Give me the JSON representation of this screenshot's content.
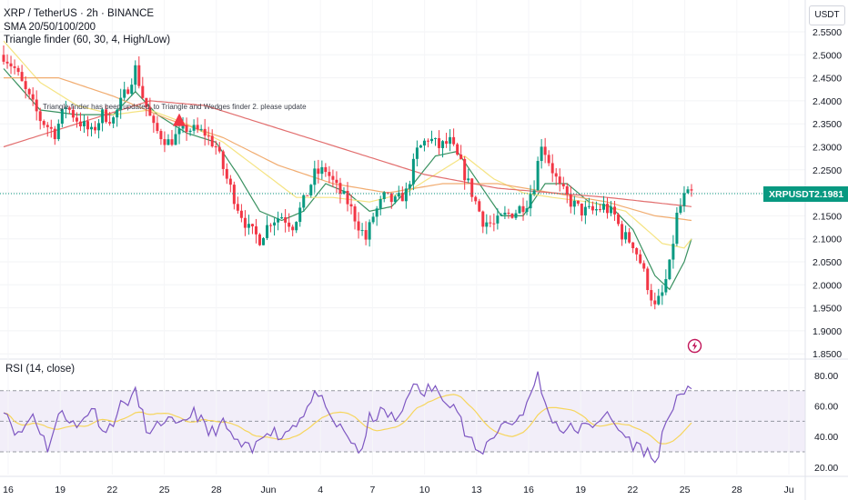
{
  "header": {
    "symbol_line": "XRP / TetherUS · 2h · BINANCE",
    "sma_line": "SMA 20/50/100/200",
    "triangle_line": "Triangle finder (60, 30, 4, High/Low)",
    "notice": "Triangle finder has been updated, to Triangle and Wedges finder 2. please update"
  },
  "price_axis": {
    "unit": "USDT",
    "ticks": [
      "2.5500",
      "2.5000",
      "2.4500",
      "2.4000",
      "2.3500",
      "2.3000",
      "2.2500",
      "2.2000",
      "2.1500",
      "2.1000",
      "2.0500",
      "2.0000",
      "1.9500",
      "1.9000",
      "1.8500"
    ]
  },
  "last_price": {
    "symbol": "XRPUSDT",
    "value": "2.1981",
    "color": "#089981"
  },
  "rsi": {
    "title": "RSI (14, close)",
    "ticks": [
      "80.00",
      "60.00",
      "40.00",
      "20.00"
    ]
  },
  "time_axis": {
    "labels": [
      "16",
      "19",
      "22",
      "25",
      "28",
      "Jun",
      "4",
      "7",
      "10",
      "13",
      "16",
      "19",
      "22",
      "25",
      "28",
      "Ju"
    ]
  },
  "colors": {
    "up": "#089981",
    "down": "#f23645",
    "sma20": "#2e8b57",
    "sma50": "#f4e27a",
    "sma100": "#f0a868",
    "sma200": "#e06666",
    "rsi_line": "#7e57c2",
    "rsi_ma": "#f6d55c",
    "rsi_band": "#ede7f6"
  },
  "chart_data": {
    "type": "candlestick",
    "symbol": "XRP / TetherUS",
    "interval": "2h",
    "exchange": "BINANCE",
    "price_range": [
      1.85,
      2.55
    ],
    "last_price": 2.1981,
    "anchors": [
      [
        0,
        2.5
      ],
      [
        3,
        2.47
      ],
      [
        6,
        2.42
      ],
      [
        10,
        2.36
      ],
      [
        14,
        2.33
      ],
      [
        17,
        2.39
      ],
      [
        20,
        2.36
      ],
      [
        24,
        2.33
      ],
      [
        27,
        2.37
      ],
      [
        30,
        2.36
      ],
      [
        34,
        2.43
      ],
      [
        36,
        2.47
      ],
      [
        38,
        2.41
      ],
      [
        41,
        2.34
      ],
      [
        45,
        2.31
      ],
      [
        50,
        2.34
      ],
      [
        55,
        2.33
      ],
      [
        58,
        2.3
      ],
      [
        61,
        2.23
      ],
      [
        64,
        2.17
      ],
      [
        67,
        2.12
      ],
      [
        70,
        2.1
      ],
      [
        73,
        2.14
      ],
      [
        76,
        2.15
      ],
      [
        79,
        2.13
      ],
      [
        82,
        2.18
      ],
      [
        85,
        2.24
      ],
      [
        88,
        2.25
      ],
      [
        91,
        2.21
      ],
      [
        94,
        2.18
      ],
      [
        97,
        2.13
      ],
      [
        99,
        2.1
      ],
      [
        101,
        2.15
      ],
      [
        104,
        2.19
      ],
      [
        107,
        2.18
      ],
      [
        110,
        2.2
      ],
      [
        113,
        2.29
      ],
      [
        116,
        2.32
      ],
      [
        119,
        2.3
      ],
      [
        122,
        2.31
      ],
      [
        125,
        2.26
      ],
      [
        128,
        2.2
      ],
      [
        131,
        2.14
      ],
      [
        134,
        2.13
      ],
      [
        137,
        2.15
      ],
      [
        140,
        2.16
      ],
      [
        143,
        2.18
      ],
      [
        145,
        2.22
      ],
      [
        147,
        2.31
      ],
      [
        149,
        2.27
      ],
      [
        152,
        2.21
      ],
      [
        155,
        2.18
      ],
      [
        158,
        2.16
      ],
      [
        161,
        2.16
      ],
      [
        164,
        2.17
      ],
      [
        167,
        2.15
      ],
      [
        169,
        2.11
      ],
      [
        172,
        2.09
      ],
      [
        174,
        2.05
      ],
      [
        176,
        2.0
      ],
      [
        178,
        1.95
      ],
      [
        180,
        1.98
      ],
      [
        182,
        2.04
      ],
      [
        184,
        2.15
      ],
      [
        186,
        2.19
      ],
      [
        188,
        2.198
      ]
    ],
    "sma": [
      {
        "name": "SMA 20",
        "color": "#2e8b57",
        "anchors": [
          [
            0,
            2.47
          ],
          [
            10,
            2.38
          ],
          [
            20,
            2.37
          ],
          [
            30,
            2.37
          ],
          [
            36,
            2.42
          ],
          [
            42,
            2.37
          ],
          [
            50,
            2.33
          ],
          [
            58,
            2.31
          ],
          [
            64,
            2.24
          ],
          [
            70,
            2.16
          ],
          [
            76,
            2.14
          ],
          [
            82,
            2.16
          ],
          [
            88,
            2.22
          ],
          [
            94,
            2.2
          ],
          [
            100,
            2.16
          ],
          [
            106,
            2.17
          ],
          [
            112,
            2.22
          ],
          [
            118,
            2.28
          ],
          [
            124,
            2.29
          ],
          [
            130,
            2.22
          ],
          [
            136,
            2.15
          ],
          [
            142,
            2.15
          ],
          [
            148,
            2.22
          ],
          [
            154,
            2.22
          ],
          [
            160,
            2.18
          ],
          [
            166,
            2.17
          ],
          [
            172,
            2.12
          ],
          [
            178,
            2.02
          ],
          [
            182,
            1.99
          ],
          [
            186,
            2.05
          ],
          [
            188,
            2.1
          ]
        ]
      },
      {
        "name": "SMA 50",
        "color": "#f4e27a",
        "anchors": [
          [
            0,
            2.53
          ],
          [
            10,
            2.44
          ],
          [
            20,
            2.39
          ],
          [
            30,
            2.37
          ],
          [
            40,
            2.38
          ],
          [
            50,
            2.35
          ],
          [
            60,
            2.31
          ],
          [
            70,
            2.25
          ],
          [
            80,
            2.19
          ],
          [
            90,
            2.19
          ],
          [
            100,
            2.18
          ],
          [
            110,
            2.2
          ],
          [
            120,
            2.25
          ],
          [
            126,
            2.28
          ],
          [
            134,
            2.23
          ],
          [
            142,
            2.2
          ],
          [
            150,
            2.19
          ],
          [
            160,
            2.18
          ],
          [
            170,
            2.16
          ],
          [
            180,
            2.09
          ],
          [
            186,
            2.08
          ],
          [
            188,
            2.1
          ]
        ]
      },
      {
        "name": "SMA 100",
        "color": "#f0a868",
        "anchors": [
          [
            0,
            2.45
          ],
          [
            15,
            2.45
          ],
          [
            30,
            2.41
          ],
          [
            45,
            2.36
          ],
          [
            60,
            2.32
          ],
          [
            75,
            2.26
          ],
          [
            90,
            2.22
          ],
          [
            105,
            2.2
          ],
          [
            120,
            2.22
          ],
          [
            135,
            2.22
          ],
          [
            150,
            2.2
          ],
          [
            165,
            2.18
          ],
          [
            178,
            2.15
          ],
          [
            188,
            2.14
          ]
        ]
      },
      {
        "name": "SMA 200",
        "color": "#e06666",
        "anchors": [
          [
            0,
            2.3
          ],
          [
            20,
            2.35
          ],
          [
            40,
            2.4
          ],
          [
            55,
            2.39
          ],
          [
            75,
            2.34
          ],
          [
            95,
            2.29
          ],
          [
            115,
            2.24
          ],
          [
            135,
            2.21
          ],
          [
            150,
            2.2
          ],
          [
            165,
            2.19
          ],
          [
            188,
            2.17
          ]
        ]
      }
    ],
    "rsi": {
      "name": "RSI (14, close)",
      "range": [
        15,
        85
      ],
      "levels": [
        70,
        50,
        30
      ],
      "anchors": [
        [
          0,
          60
        ],
        [
          4,
          40
        ],
        [
          8,
          55
        ],
        [
          12,
          33
        ],
        [
          16,
          58
        ],
        [
          20,
          45
        ],
        [
          24,
          60
        ],
        [
          28,
          42
        ],
        [
          32,
          60
        ],
        [
          36,
          68
        ],
        [
          40,
          40
        ],
        [
          44,
          52
        ],
        [
          48,
          45
        ],
        [
          52,
          58
        ],
        [
          56,
          42
        ],
        [
          60,
          48
        ],
        [
          64,
          35
        ],
        [
          68,
          30
        ],
        [
          72,
          46
        ],
        [
          76,
          40
        ],
        [
          80,
          50
        ],
        [
          84,
          62
        ],
        [
          86,
          70
        ],
        [
          88,
          55
        ],
        [
          92,
          45
        ],
        [
          96,
          35
        ],
        [
          98,
          28
        ],
        [
          100,
          52
        ],
        [
          104,
          56
        ],
        [
          108,
          50
        ],
        [
          112,
          78
        ],
        [
          114,
          65
        ],
        [
          116,
          72
        ],
        [
          120,
          68
        ],
        [
          124,
          58
        ],
        [
          126,
          42
        ],
        [
          130,
          28
        ],
        [
          132,
          35
        ],
        [
          136,
          48
        ],
        [
          140,
          50
        ],
        [
          144,
          65
        ],
        [
          146,
          82
        ],
        [
          148,
          60
        ],
        [
          152,
          45
        ],
        [
          156,
          45
        ],
        [
          160,
          46
        ],
        [
          164,
          55
        ],
        [
          168,
          45
        ],
        [
          172,
          35
        ],
        [
          176,
          30
        ],
        [
          178,
          22
        ],
        [
          180,
          40
        ],
        [
          182,
          50
        ],
        [
          184,
          70
        ],
        [
          186,
          68
        ],
        [
          188,
          69
        ]
      ]
    }
  }
}
